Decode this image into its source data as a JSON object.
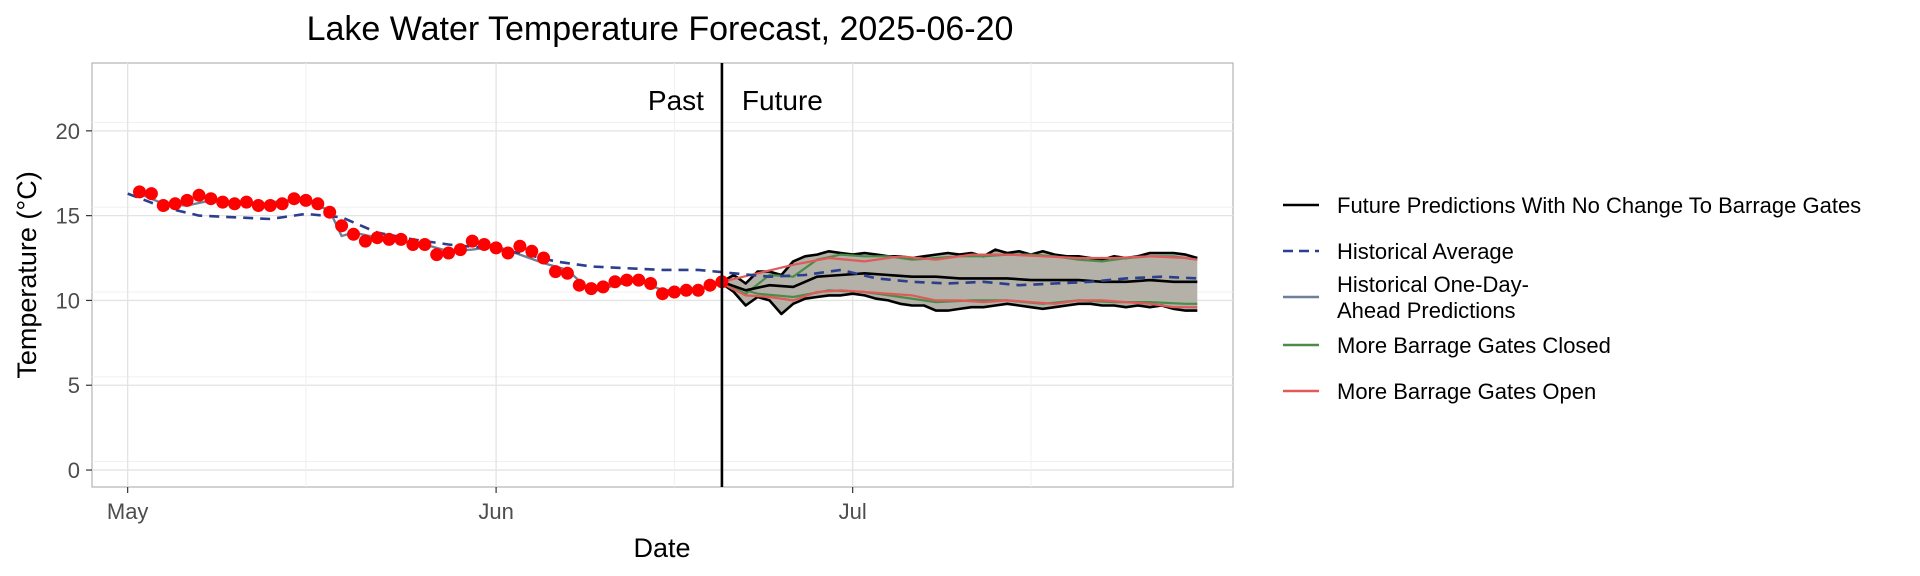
{
  "chart_data": {
    "type": "line",
    "title": "Lake Water Temperature Forecast, 2025-06-20",
    "xlabel": "Date",
    "ylabel": "Temperature (°C)",
    "x_ticks": [
      {
        "date": "2025-05-01",
        "label": "May"
      },
      {
        "date": "2025-06-01",
        "label": "Jun"
      },
      {
        "date": "2025-07-01",
        "label": "Jul"
      }
    ],
    "xlim": [
      "2025-04-28",
      "2025-08-02"
    ],
    "ylim": [
      -1,
      24
    ],
    "y_ticks": [
      0,
      5,
      10,
      15,
      20
    ],
    "grid": true,
    "legend_position": "right",
    "forecast_date": "2025-06-20",
    "annotations": {
      "past": "Past",
      "future": "Future"
    },
    "colors": {
      "observed": "#ff0000",
      "historical_average": "#2b3f8c",
      "historical_predictions": "#6e7f99",
      "no_change": "#000000",
      "gates_closed": "#4c8c4a",
      "gates_open": "#e05a5a",
      "band_fill": "#b3b1a8"
    },
    "legend": [
      {
        "key": "no_change",
        "label_lines": [
          "Future Predictions With No Change To Barrage Gates"
        ],
        "style": "solid"
      },
      {
        "key": "historical_average",
        "label_lines": [
          "Historical Average"
        ],
        "style": "dashed"
      },
      {
        "key": "historical_predictions",
        "label_lines": [
          "Historical One-Day-",
          "Ahead Predictions"
        ],
        "style": "solid"
      },
      {
        "key": "gates_closed",
        "label_lines": [
          "More Barrage Gates Closed"
        ],
        "style": "solid"
      },
      {
        "key": "gates_open",
        "label_lines": [
          "More Barrage Gates Open"
        ],
        "style": "solid"
      }
    ],
    "series": [
      {
        "key": "observed",
        "kind": "points",
        "x": [
          "2025-05-02",
          "2025-05-03",
          "2025-05-04",
          "2025-05-05",
          "2025-05-06",
          "2025-05-07",
          "2025-05-08",
          "2025-05-09",
          "2025-05-10",
          "2025-05-11",
          "2025-05-12",
          "2025-05-13",
          "2025-05-14",
          "2025-05-15",
          "2025-05-16",
          "2025-05-17",
          "2025-05-18",
          "2025-05-19",
          "2025-05-20",
          "2025-05-21",
          "2025-05-22",
          "2025-05-23",
          "2025-05-24",
          "2025-05-25",
          "2025-05-26",
          "2025-05-27",
          "2025-05-28",
          "2025-05-29",
          "2025-05-30",
          "2025-05-31",
          "2025-06-01",
          "2025-06-02",
          "2025-06-03",
          "2025-06-04",
          "2025-06-05",
          "2025-06-06",
          "2025-06-07",
          "2025-06-08",
          "2025-06-09",
          "2025-06-10",
          "2025-06-11",
          "2025-06-12",
          "2025-06-13",
          "2025-06-14",
          "2025-06-15",
          "2025-06-16",
          "2025-06-17",
          "2025-06-18",
          "2025-06-19",
          "2025-06-20"
        ],
        "y": [
          16.4,
          16.3,
          15.6,
          15.7,
          15.9,
          16.2,
          16.0,
          15.8,
          15.7,
          15.8,
          15.6,
          15.6,
          15.7,
          16.0,
          15.9,
          15.7,
          15.2,
          14.4,
          13.9,
          13.5,
          13.7,
          13.6,
          13.6,
          13.3,
          13.3,
          12.7,
          12.8,
          13.0,
          13.5,
          13.3,
          13.1,
          12.8,
          13.2,
          12.9,
          12.5,
          11.7,
          11.6,
          10.9,
          10.7,
          10.8,
          11.1,
          11.2,
          11.2,
          11.0,
          10.4,
          10.5,
          10.6,
          10.6,
          10.9,
          11.1
        ]
      },
      {
        "key": "historical_average",
        "kind": "line",
        "x": [
          "2025-05-01",
          "2025-05-04",
          "2025-05-07",
          "2025-05-10",
          "2025-05-13",
          "2025-05-16",
          "2025-05-19",
          "2025-05-22",
          "2025-05-25",
          "2025-05-28",
          "2025-05-31",
          "2025-06-03",
          "2025-06-06",
          "2025-06-09",
          "2025-06-12",
          "2025-06-15",
          "2025-06-18",
          "2025-06-21",
          "2025-06-24",
          "2025-06-27",
          "2025-06-30",
          "2025-07-03",
          "2025-07-06",
          "2025-07-09",
          "2025-07-12",
          "2025-07-15",
          "2025-07-18",
          "2025-07-21",
          "2025-07-24",
          "2025-07-27",
          "2025-07-30"
        ],
        "y": [
          16.3,
          15.5,
          15.0,
          14.9,
          14.8,
          15.1,
          14.9,
          14.0,
          13.6,
          13.3,
          13.1,
          12.8,
          12.3,
          12.0,
          11.9,
          11.8,
          11.8,
          11.6,
          11.4,
          11.5,
          11.8,
          11.3,
          11.1,
          11.0,
          11.1,
          10.9,
          11.0,
          11.1,
          11.3,
          11.4,
          11.3
        ]
      },
      {
        "key": "historical_predictions",
        "kind": "line",
        "x": [
          "2025-05-02",
          "2025-05-04",
          "2025-05-06",
          "2025-05-08",
          "2025-05-10",
          "2025-05-12",
          "2025-05-14",
          "2025-05-16",
          "2025-05-18",
          "2025-05-19",
          "2025-05-20",
          "2025-05-22",
          "2025-05-24",
          "2025-05-26",
          "2025-05-28",
          "2025-05-30",
          "2025-06-01",
          "2025-06-03",
          "2025-06-05",
          "2025-06-07",
          "2025-06-09",
          "2025-06-11",
          "2025-06-13",
          "2025-06-15",
          "2025-06-17",
          "2025-06-19",
          "2025-06-20"
        ],
        "y": [
          16.3,
          15.7,
          15.6,
          15.9,
          15.8,
          15.6,
          15.9,
          15.9,
          15.3,
          13.8,
          14.0,
          13.7,
          13.5,
          13.3,
          12.9,
          13.0,
          13.2,
          12.7,
          12.2,
          11.8,
          10.5,
          10.9,
          11.2,
          10.6,
          10.6,
          10.8,
          11.0
        ]
      },
      {
        "key": "band_upper",
        "kind": "line",
        "x": [
          "2025-06-20",
          "2025-06-21",
          "2025-06-22",
          "2025-06-23",
          "2025-06-24",
          "2025-06-25",
          "2025-06-26",
          "2025-06-27",
          "2025-06-28",
          "2025-06-29",
          "2025-06-30",
          "2025-07-01",
          "2025-07-02",
          "2025-07-03",
          "2025-07-04",
          "2025-07-05",
          "2025-07-06",
          "2025-07-07",
          "2025-07-08",
          "2025-07-09",
          "2025-07-10",
          "2025-07-11",
          "2025-07-12",
          "2025-07-13",
          "2025-07-14",
          "2025-07-15",
          "2025-07-16",
          "2025-07-17",
          "2025-07-18",
          "2025-07-19",
          "2025-07-20",
          "2025-07-21",
          "2025-07-22",
          "2025-07-23",
          "2025-07-24",
          "2025-07-25",
          "2025-07-26",
          "2025-07-27",
          "2025-07-28",
          "2025-07-29",
          "2025-07-30"
        ],
        "y": [
          11.1,
          11.5,
          11.0,
          11.7,
          11.7,
          11.5,
          12.3,
          12.6,
          12.7,
          12.9,
          12.8,
          12.7,
          12.8,
          12.7,
          12.6,
          12.6,
          12.5,
          12.6,
          12.7,
          12.8,
          12.7,
          12.8,
          12.6,
          13.0,
          12.8,
          12.9,
          12.7,
          12.9,
          12.7,
          12.6,
          12.6,
          12.5,
          12.4,
          12.6,
          12.5,
          12.6,
          12.8,
          12.8,
          12.8,
          12.7,
          12.5
        ]
      },
      {
        "key": "band_lower",
        "kind": "line",
        "x": [
          "2025-06-20",
          "2025-06-21",
          "2025-06-22",
          "2025-06-23",
          "2025-06-24",
          "2025-06-25",
          "2025-06-26",
          "2025-06-27",
          "2025-06-28",
          "2025-06-29",
          "2025-06-30",
          "2025-07-01",
          "2025-07-02",
          "2025-07-03",
          "2025-07-04",
          "2025-07-05",
          "2025-07-06",
          "2025-07-07",
          "2025-07-08",
          "2025-07-09",
          "2025-07-10",
          "2025-07-11",
          "2025-07-12",
          "2025-07-13",
          "2025-07-14",
          "2025-07-15",
          "2025-07-16",
          "2025-07-17",
          "2025-07-18",
          "2025-07-19",
          "2025-07-20",
          "2025-07-21",
          "2025-07-22",
          "2025-07-23",
          "2025-07-24",
          "2025-07-25",
          "2025-07-26",
          "2025-07-27",
          "2025-07-28",
          "2025-07-29",
          "2025-07-30"
        ],
        "y": [
          11.0,
          10.5,
          9.7,
          10.2,
          10.0,
          9.2,
          9.8,
          10.1,
          10.2,
          10.3,
          10.3,
          10.4,
          10.3,
          10.1,
          10.0,
          9.8,
          9.7,
          9.7,
          9.4,
          9.4,
          9.5,
          9.6,
          9.6,
          9.7,
          9.8,
          9.7,
          9.6,
          9.5,
          9.6,
          9.7,
          9.8,
          9.8,
          9.7,
          9.7,
          9.6,
          9.7,
          9.6,
          9.7,
          9.5,
          9.4,
          9.4
        ]
      },
      {
        "key": "no_change",
        "kind": "line",
        "x": [
          "2025-06-20",
          "2025-06-22",
          "2025-06-24",
          "2025-06-26",
          "2025-06-28",
          "2025-06-30",
          "2025-07-02",
          "2025-07-04",
          "2025-07-06",
          "2025-07-08",
          "2025-07-10",
          "2025-07-12",
          "2025-07-14",
          "2025-07-16",
          "2025-07-18",
          "2025-07-20",
          "2025-07-22",
          "2025-07-24",
          "2025-07-26",
          "2025-07-28",
          "2025-07-30"
        ],
        "y": [
          11.1,
          10.6,
          10.9,
          10.8,
          11.4,
          11.5,
          11.6,
          11.5,
          11.4,
          11.4,
          11.3,
          11.3,
          11.3,
          11.2,
          11.2,
          11.2,
          11.1,
          11.1,
          11.2,
          11.1,
          11.1
        ]
      },
      {
        "key": "gates_closed",
        "kind": "line",
        "x": [
          "2025-06-20",
          "2025-06-22",
          "2025-06-24",
          "2025-06-26",
          "2025-06-28",
          "2025-06-30",
          "2025-07-02",
          "2025-07-04",
          "2025-07-06",
          "2025-07-08",
          "2025-07-10",
          "2025-07-12",
          "2025-07-14",
          "2025-07-16",
          "2025-07-18",
          "2025-07-20",
          "2025-07-22",
          "2025-07-24",
          "2025-07-26",
          "2025-07-28",
          "2025-07-30"
        ],
        "y": [
          11.0,
          10.4,
          11.5,
          11.4,
          12.4,
          12.7,
          12.6,
          12.6,
          12.4,
          12.5,
          12.6,
          12.6,
          12.7,
          12.7,
          12.6,
          12.4,
          12.3,
          12.5,
          12.6,
          12.6,
          12.4
        ]
      },
      {
        "key": "gates_open",
        "kind": "line",
        "x": [
          "2025-06-20",
          "2025-06-22",
          "2025-06-24",
          "2025-06-26",
          "2025-06-28",
          "2025-06-30",
          "2025-07-02",
          "2025-07-04",
          "2025-07-06",
          "2025-07-08",
          "2025-07-10",
          "2025-07-12",
          "2025-07-14",
          "2025-07-16",
          "2025-07-18",
          "2025-07-20",
          "2025-07-22",
          "2025-07-24",
          "2025-07-26",
          "2025-07-28",
          "2025-07-30"
        ],
        "y": [
          11.0,
          10.3,
          10.2,
          10.0,
          10.5,
          10.6,
          10.5,
          10.4,
          10.3,
          10.0,
          10.0,
          9.9,
          10.0,
          9.9,
          9.8,
          10.0,
          10.0,
          9.9,
          9.8,
          9.6,
          9.6
        ]
      },
      {
        "key": "gates_open_upper",
        "kind": "line",
        "x": [
          "2025-06-20",
          "2025-06-23",
          "2025-06-26",
          "2025-06-29",
          "2025-07-02",
          "2025-07-05",
          "2025-07-08",
          "2025-07-11",
          "2025-07-14",
          "2025-07-17",
          "2025-07-20",
          "2025-07-23",
          "2025-07-26",
          "2025-07-29",
          "2025-07-30"
        ],
        "y": [
          11.1,
          11.6,
          12.1,
          12.5,
          12.3,
          12.6,
          12.4,
          12.7,
          12.7,
          12.6,
          12.5,
          12.5,
          12.6,
          12.5,
          12.4
        ]
      },
      {
        "key": "gates_closed_lower",
        "kind": "line",
        "x": [
          "2025-06-20",
          "2025-06-23",
          "2025-06-26",
          "2025-06-29",
          "2025-07-02",
          "2025-07-05",
          "2025-07-08",
          "2025-07-11",
          "2025-07-14",
          "2025-07-17",
          "2025-07-20",
          "2025-07-23",
          "2025-07-26",
          "2025-07-29",
          "2025-07-30"
        ],
        "y": [
          11.0,
          10.4,
          10.2,
          10.6,
          10.5,
          10.2,
          9.9,
          10.0,
          10.0,
          9.8,
          10.0,
          9.9,
          9.9,
          9.8,
          9.8
        ]
      }
    ]
  }
}
